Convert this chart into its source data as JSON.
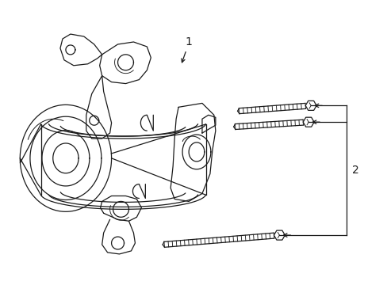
{
  "bg_color": "#ffffff",
  "line_color": "#1a1a1a",
  "label1": "1",
  "label2": "2",
  "fig_w": 4.89,
  "fig_h": 3.6,
  "dpi": 100
}
